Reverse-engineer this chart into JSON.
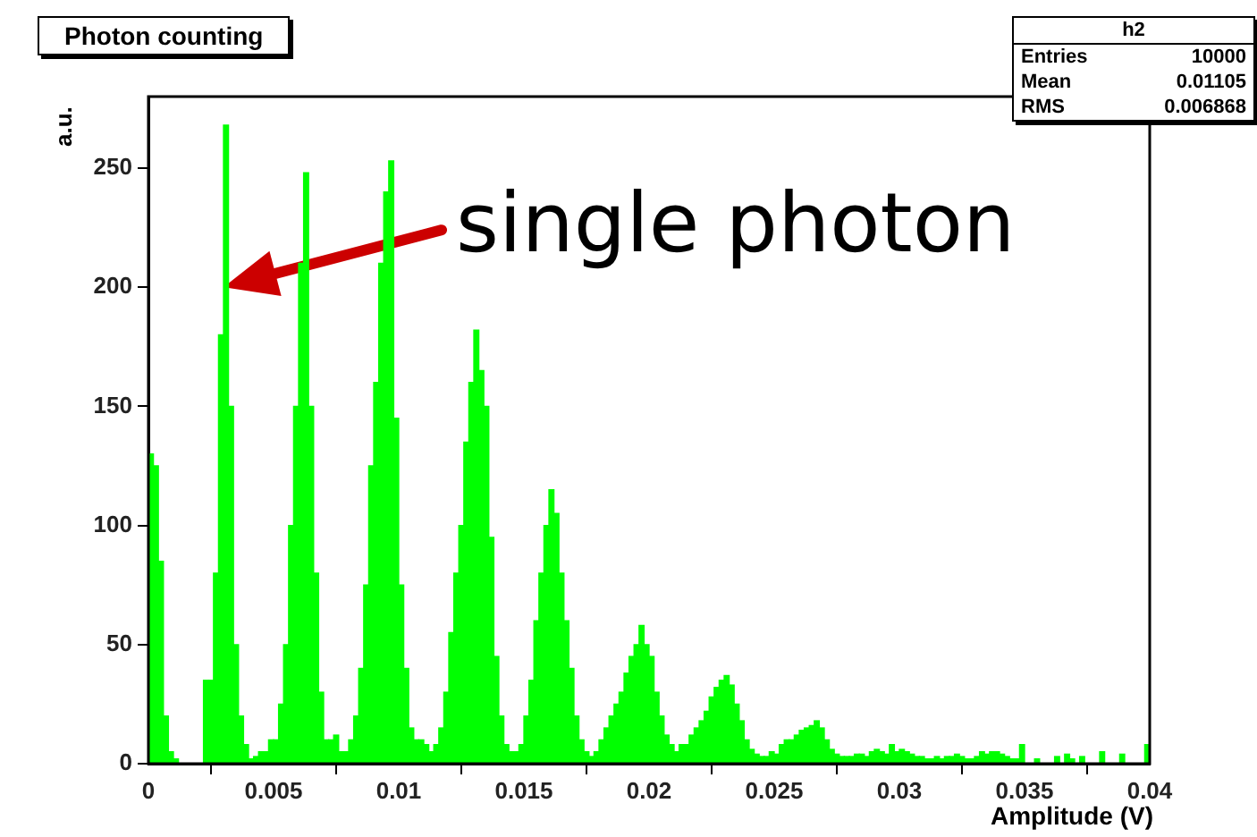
{
  "chart_data": {
    "type": "histogram",
    "title": "Photon counting",
    "xlabel": "Amplitude (V)",
    "ylabel": "a.u.",
    "bins": [
      0,
      0.0002,
      0.0004,
      0.0006,
      0.0008,
      0.001,
      0.0012,
      0.0014,
      0.0016,
      0.0018,
      0.002,
      0.0022,
      0.0024,
      0.0026,
      0.0028,
      0.003,
      0.0032,
      0.0034,
      0.0036,
      0.0038,
      0.004,
      0.0042,
      0.0044,
      0.0046,
      0.0048,
      0.005,
      0.0052,
      0.0054,
      0.0056,
      0.0058,
      0.006,
      0.0062,
      0.0064,
      0.0066,
      0.0068,
      0.007,
      0.0072,
      0.0074,
      0.0076,
      0.0078,
      0.008,
      0.0082,
      0.0084,
      0.0086,
      0.0088,
      0.009,
      0.0092,
      0.0094,
      0.0096,
      0.0098,
      0.01,
      0.0102,
      0.0104,
      0.0106,
      0.0108,
      0.011,
      0.0112,
      0.0114,
      0.0116,
      0.0118,
      0.012,
      0.0122,
      0.0124,
      0.0126,
      0.0128,
      0.013,
      0.0132,
      0.0134,
      0.0136,
      0.0138,
      0.014,
      0.0142,
      0.0144,
      0.0146,
      0.0148,
      0.015,
      0.0152,
      0.0154,
      0.0156,
      0.0158,
      0.016,
      0.0162,
      0.0164,
      0.0166,
      0.0168,
      0.017,
      0.0172,
      0.0174,
      0.0176,
      0.0178,
      0.018,
      0.0182,
      0.0184,
      0.0186,
      0.0188,
      0.019,
      0.0192,
      0.0194,
      0.0196,
      0.0198,
      0.02,
      0.0202,
      0.0204,
      0.0206,
      0.0208,
      0.021,
      0.0212,
      0.0214,
      0.0216,
      0.0218,
      0.022,
      0.0222,
      0.0224,
      0.0226,
      0.0228,
      0.023,
      0.0232,
      0.0234,
      0.0236,
      0.0238,
      0.024,
      0.0242,
      0.0244,
      0.0246,
      0.0248,
      0.025,
      0.0252,
      0.0254,
      0.0256,
      0.0258,
      0.026,
      0.0262,
      0.0264,
      0.0266,
      0.0268,
      0.027,
      0.0272,
      0.0274,
      0.0276,
      0.0278,
      0.028,
      0.0282,
      0.0284,
      0.0286,
      0.0288,
      0.029,
      0.0292,
      0.0294,
      0.0296,
      0.0298,
      0.03,
      0.0302,
      0.0304,
      0.0306,
      0.0308,
      0.031,
      0.0312,
      0.0314,
      0.0316,
      0.0318,
      0.032,
      0.0322,
      0.0324,
      0.0326,
      0.0328,
      0.033,
      0.0332,
      0.0334,
      0.0336,
      0.0338,
      0.034,
      0.0342,
      0.0344,
      0.0346,
      0.0348,
      0.035,
      0.0352,
      0.0354,
      0.0356,
      0.0358,
      0.036,
      0.0362,
      0.0364,
      0.0366,
      0.0368,
      0.037,
      0.0372,
      0.0374,
      0.0376,
      0.0378,
      0.038,
      0.0382,
      0.0384,
      0.0386,
      0.0388,
      0.039,
      0.0392,
      0.0394,
      0.0396,
      0.0398,
      0.04
    ],
    "values": [
      130,
      125,
      85,
      20,
      5,
      2,
      0,
      0,
      0,
      0,
      0,
      35,
      35,
      80,
      180,
      268,
      150,
      50,
      20,
      8,
      2,
      3,
      5,
      5,
      10,
      10,
      25,
      50,
      100,
      150,
      210,
      248,
      150,
      80,
      30,
      10,
      10,
      12,
      5,
      5,
      10,
      20,
      40,
      75,
      125,
      160,
      210,
      240,
      253,
      145,
      75,
      40,
      15,
      10,
      10,
      8,
      5,
      8,
      15,
      30,
      55,
      80,
      100,
      135,
      160,
      182,
      165,
      150,
      95,
      45,
      20,
      8,
      5,
      5,
      8,
      20,
      35,
      60,
      80,
      100,
      115,
      105,
      80,
      60,
      40,
      20,
      10,
      5,
      3,
      5,
      10,
      15,
      20,
      25,
      30,
      38,
      45,
      50,
      58,
      50,
      45,
      30,
      20,
      12,
      8,
      5,
      8,
      8,
      12,
      15,
      18,
      22,
      28,
      32,
      35,
      37,
      33,
      25,
      18,
      10,
      6,
      4,
      3,
      3,
      5,
      4,
      8,
      10,
      10,
      12,
      14,
      15,
      16,
      18,
      15,
      10,
      6,
      4,
      3,
      3,
      3,
      4,
      4,
      3,
      5,
      6,
      5,
      4,
      8,
      5,
      6,
      5,
      4,
      3,
      3,
      2,
      2,
      3,
      2,
      3,
      3,
      4,
      3,
      2,
      2,
      3,
      5,
      4,
      5,
      5,
      4,
      3,
      2,
      2,
      8,
      0,
      0,
      2,
      0,
      0,
      0,
      3,
      0,
      4,
      2,
      0,
      3,
      0,
      0,
      0,
      5,
      0,
      0,
      0,
      4,
      0,
      0,
      0,
      0,
      8
    ],
    "color": "#00ff00",
    "xlim": [
      0,
      0.04
    ],
    "xticks": [
      0,
      0.005,
      0.01,
      0.015,
      0.02,
      0.025,
      0.03,
      0.035,
      0.04
    ],
    "ylim": [
      0,
      280
    ],
    "yticks": [
      0,
      50,
      100,
      150,
      200,
      250
    ],
    "grid": false,
    "legend": false,
    "annotations": [
      {
        "text": "single photon",
        "x": 0.003,
        "y": 200
      },
      "h2",
      "Entries",
      "10000",
      "Mean",
      "0.01105",
      "RMS",
      "0.006868"
    ]
  }
}
